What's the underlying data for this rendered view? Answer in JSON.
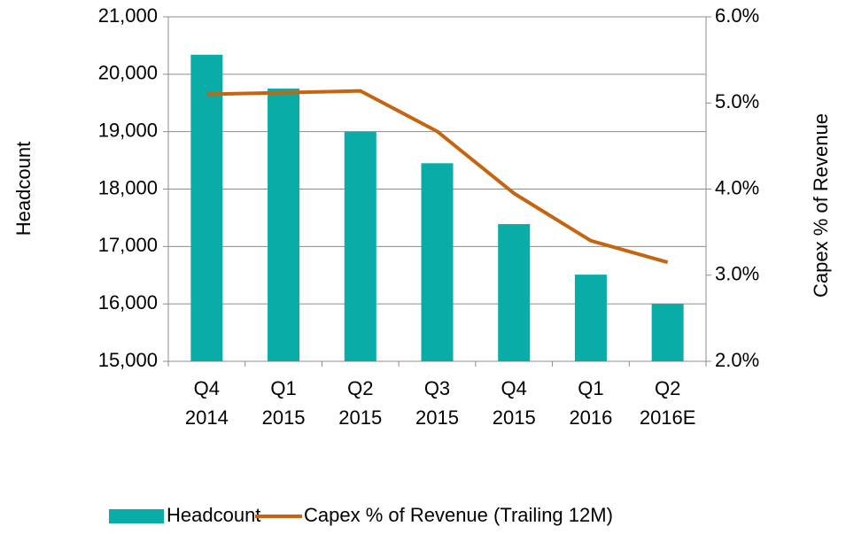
{
  "chart_data": {
    "type": "bar-line",
    "y_label": "Headcount",
    "y2_label": "Capex % of Revenue",
    "categories": [
      [
        "Q4",
        "2014"
      ],
      [
        "Q1",
        "2015"
      ],
      [
        "Q2",
        "2015"
      ],
      [
        "Q3",
        "2015"
      ],
      [
        "Q4",
        "2015"
      ],
      [
        "Q1",
        "2016"
      ],
      [
        "Q2",
        "2016E"
      ]
    ],
    "series": [
      {
        "name": "Headcount",
        "type": "bar",
        "color": "#0aaca7",
        "values": [
          20340,
          19750,
          19000,
          18450,
          17390,
          16510,
          16000
        ]
      },
      {
        "name": "Capex % of Revenue (Trailing 12M)",
        "type": "line",
        "axis": "y2",
        "color": "#c5650f",
        "values": [
          5.1,
          5.12,
          5.14,
          4.67,
          3.95,
          3.4,
          3.15
        ]
      }
    ],
    "ylim": [
      15000,
      21000
    ],
    "yticks": [
      {
        "value": 15000,
        "label": "15,000"
      },
      {
        "value": 16000,
        "label": "16,000"
      },
      {
        "value": 17000,
        "label": "17,000"
      },
      {
        "value": 18000,
        "label": "18,000"
      },
      {
        "value": 19000,
        "label": "19,000"
      },
      {
        "value": 20000,
        "label": "20,000"
      },
      {
        "value": 21000,
        "label": "21,000"
      }
    ],
    "y2lim": [
      2,
      6
    ],
    "y2ticks": [
      {
        "value": 2,
        "label": "2.0%"
      },
      {
        "value": 3,
        "label": "3.0%"
      },
      {
        "value": 4,
        "label": "4.0%"
      },
      {
        "value": 5,
        "label": "5.0%"
      },
      {
        "value": 6,
        "label": "6.0%"
      }
    ],
    "grid": true
  }
}
